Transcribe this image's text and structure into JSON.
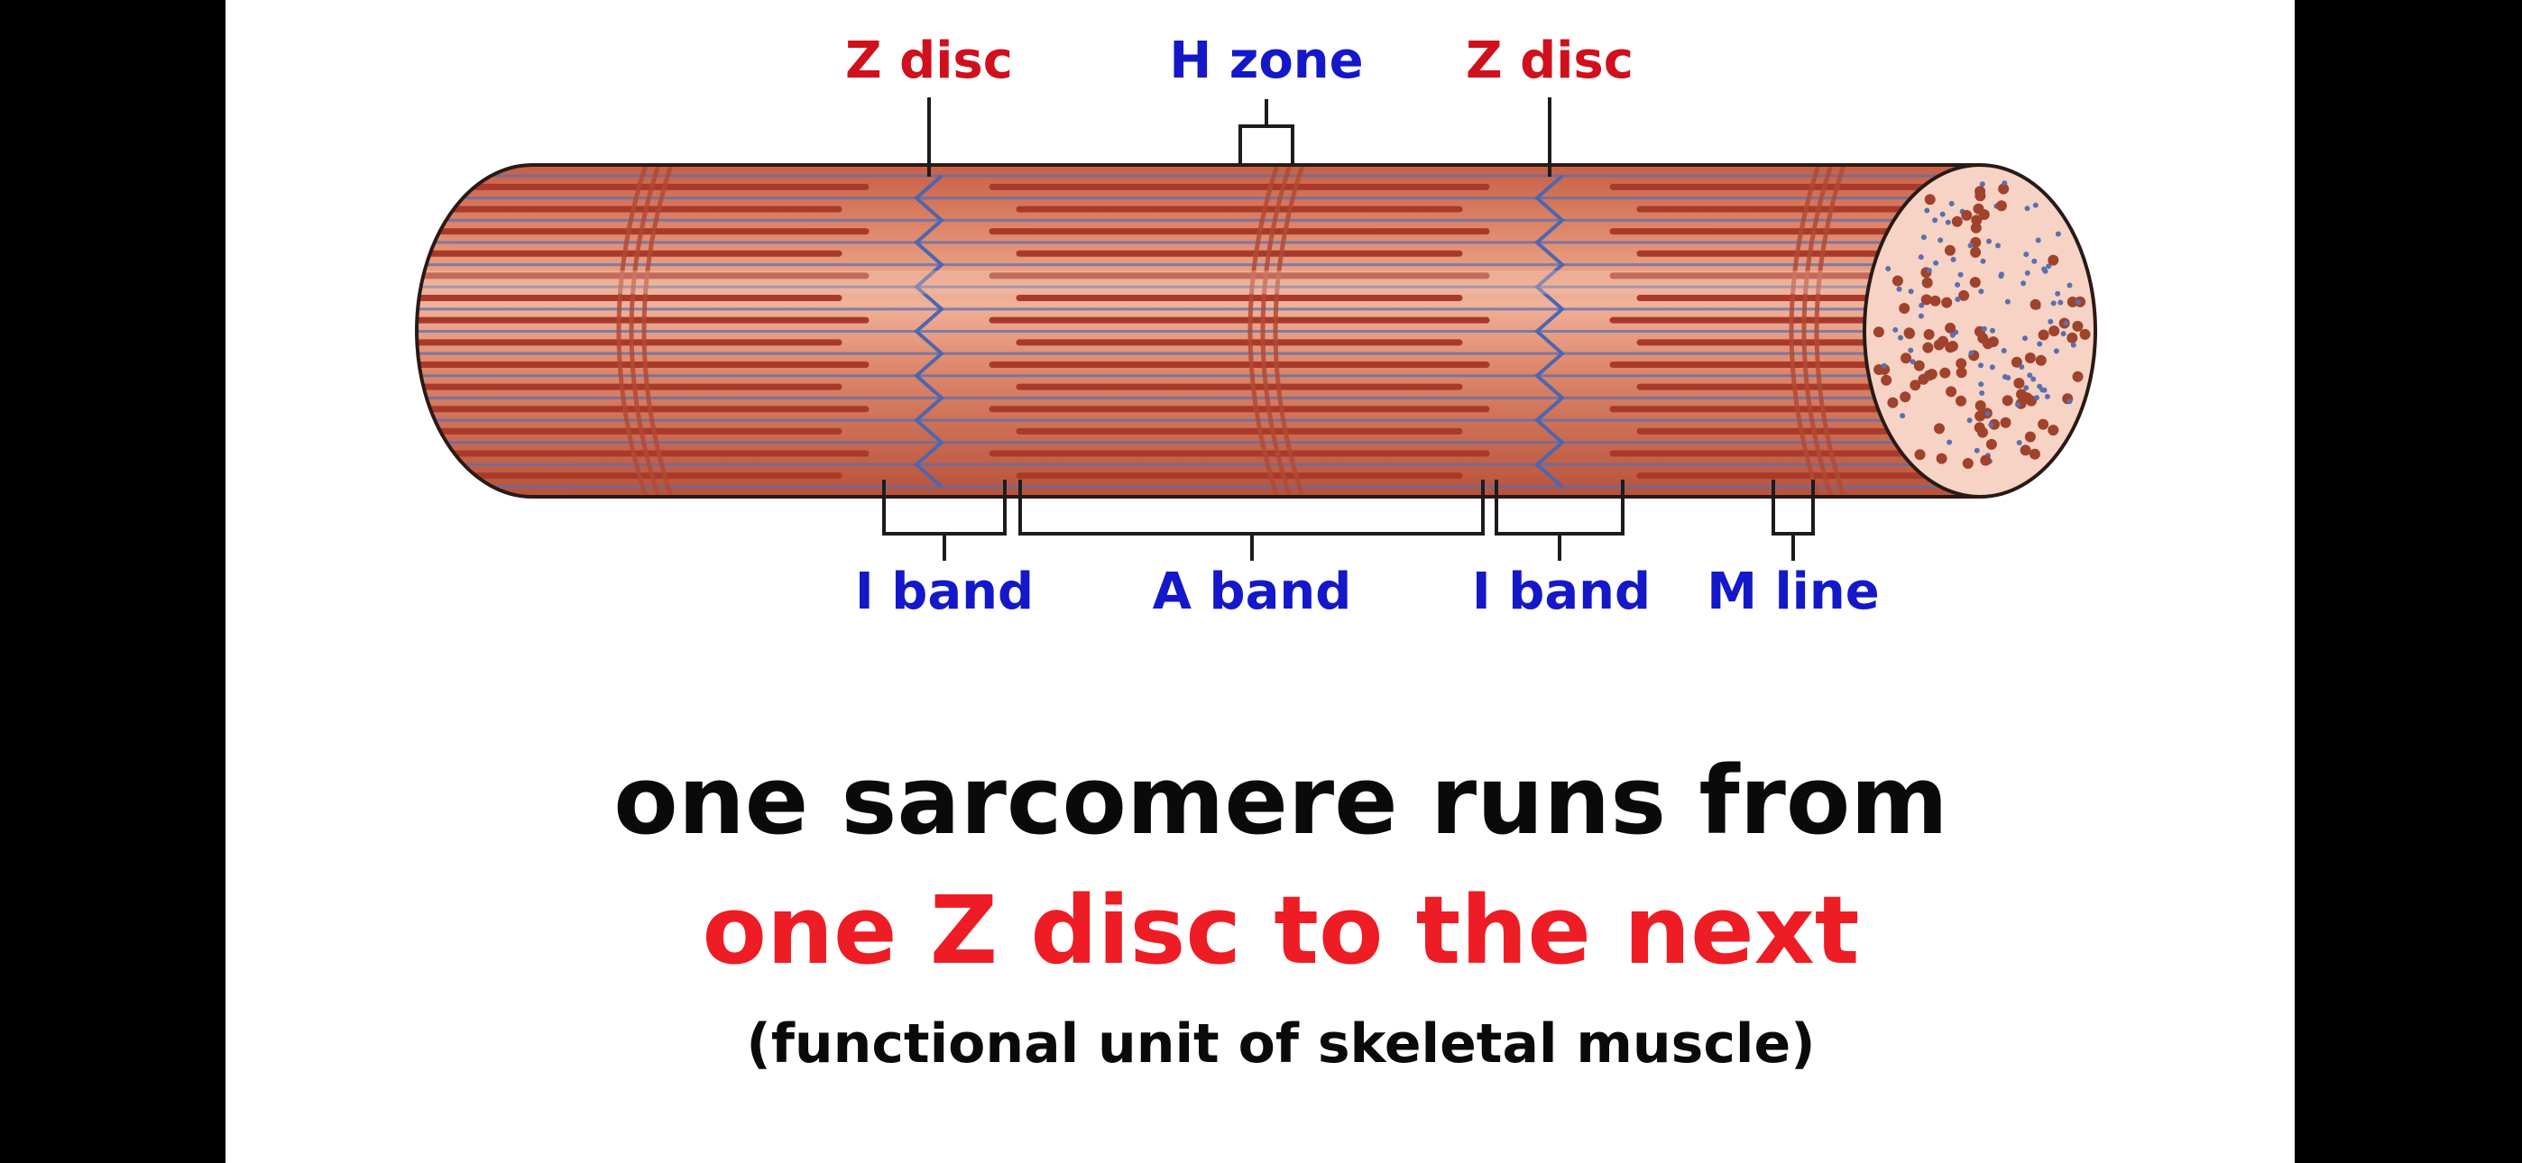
{
  "labels": {
    "z_disc_left": "Z disc",
    "h_zone": "H zone",
    "z_disc_right": "Z disc",
    "i_band_left": "I band",
    "a_band": "A band",
    "i_band_right": "I band",
    "m_line": "M line"
  },
  "caption": {
    "line1": "one sarcomere runs from",
    "line2": "one Z disc to the next",
    "line3": "(functional unit of skeletal muscle)"
  },
  "colors": {
    "red_label": "#d0101c",
    "blue_label": "#1418c8",
    "caption_black": "#0a0a0a",
    "caption_red": "#ee1c24",
    "fiber_base": "#d9775c",
    "thick_filament": "#a93a2b",
    "thin_filament": "#5b6fb0",
    "z_line": "#4d66b0",
    "cross_section": "#f6d3c4",
    "dot": "#a0422c",
    "bg_white": "#ffffff",
    "bg_black": "#000000"
  },
  "icons": {
    "diagram": "muscle-fiber-illustration"
  }
}
